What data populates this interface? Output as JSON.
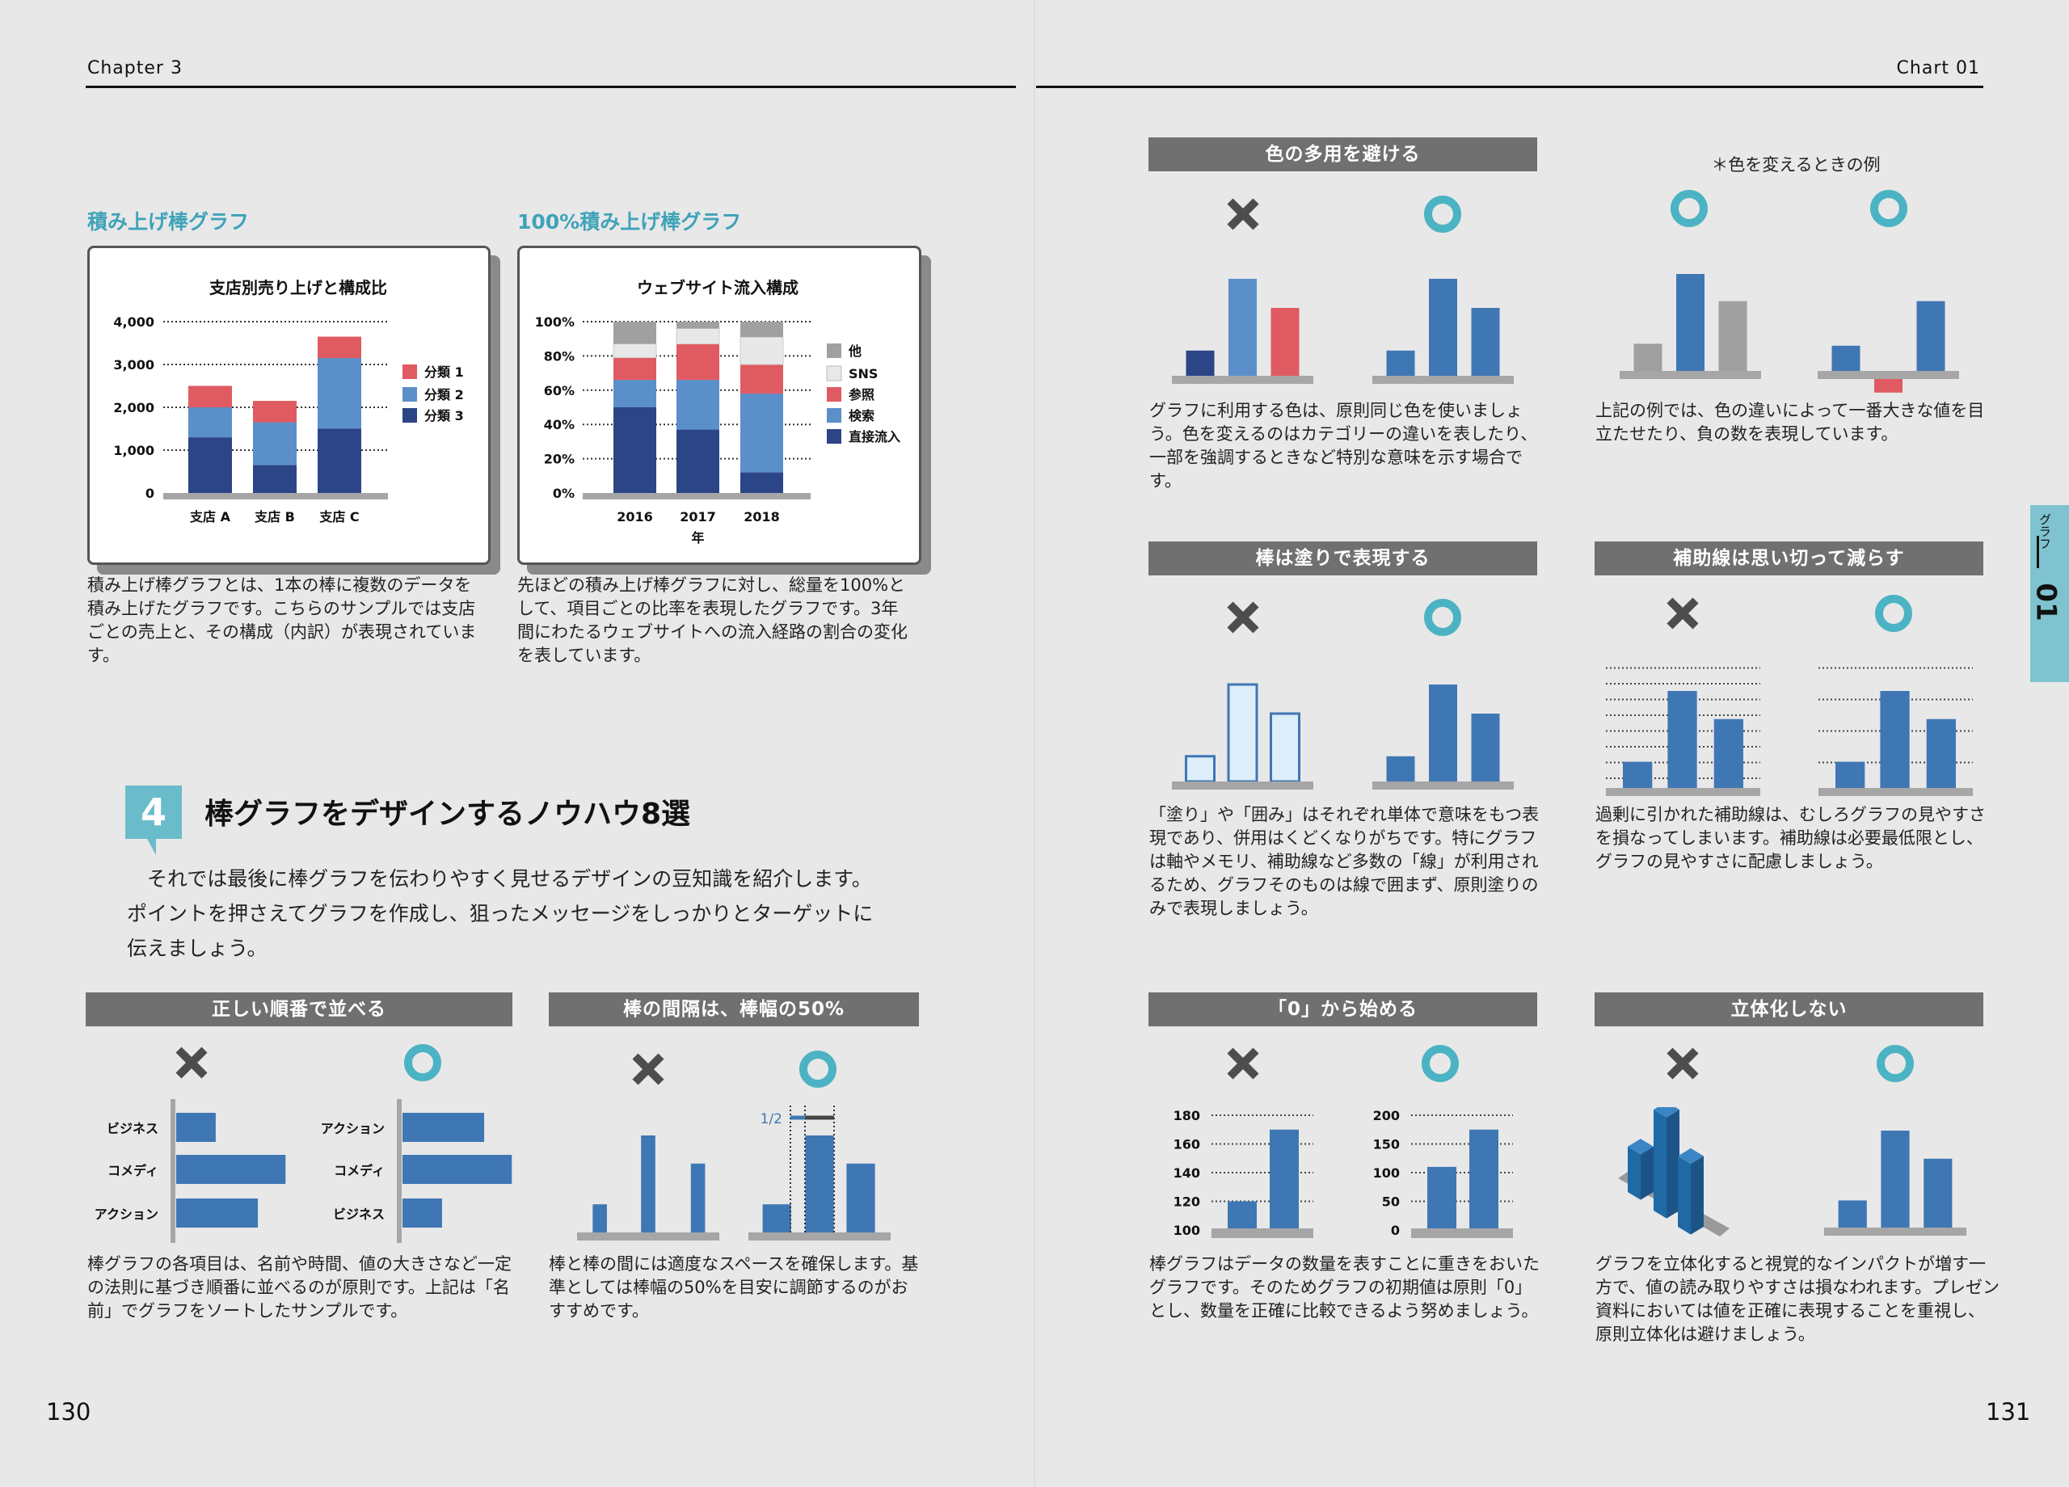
{
  "header": {
    "chapter": "Chapter 3",
    "chart_label": "Chart 01"
  },
  "page_numbers": {
    "left": "130",
    "right": "131"
  },
  "side_tab": {
    "label": "グラフ",
    "number": "01"
  },
  "colors": {
    "background": "#e8e8e8",
    "teal": "#4bb3c3",
    "heading_teal": "#3fa3b8",
    "header_bar": "#707070",
    "navy": "#2c4586",
    "mid_blue": "#5b8fc9",
    "blue": "#3f77b4",
    "red": "#e05a62",
    "gray": "#a0a0a0",
    "light_gray": "#e8e8e8",
    "outline_fill": "#ddeefa",
    "axis": "#a6a6a6",
    "x_mark": "#4d4d4d"
  },
  "stacked": {
    "heading": "積み上げ棒グラフ",
    "caption": "積み上げ棒グラフとは、1本の棒に複数のデータを積み上げたグラフです。こちらのサンプルでは支店ごとの売上と、その構成（内訳）が表現されています。"
  },
  "percent": {
    "heading": "100%積み上げ棒グラフ",
    "caption": "先ほどの積み上げ棒グラフに対し、総量を100%として、項目ごとの比率を表現したグラフです。3年間にわたるウェブサイトへの流入経路の割合の変化を表しています。"
  },
  "chart_data": [
    {
      "type": "bar",
      "stacked": true,
      "title": "支店別売り上げと構成比",
      "categories": [
        "支店 A",
        "支店 B",
        "支店 C"
      ],
      "yticks": [
        "0",
        "1,000",
        "2,000",
        "3,000",
        "4,000"
      ],
      "ylim": [
        0,
        4000
      ],
      "grid": true,
      "legend": "right",
      "series": [
        {
          "name": "分類 3",
          "color": "#2c4586",
          "values": [
            1300,
            650,
            1500
          ]
        },
        {
          "name": "分類 2",
          "color": "#5b8fc9",
          "values": [
            700,
            1000,
            1650
          ]
        },
        {
          "name": "分類 1",
          "color": "#e05a62",
          "values": [
            500,
            500,
            500
          ]
        }
      ],
      "legend_order": [
        "分類 1",
        "分類 2",
        "分類 3"
      ]
    },
    {
      "type": "bar",
      "stacked": true,
      "percent": true,
      "title": "ウェブサイト流入構成",
      "categories": [
        "2016",
        "2017",
        "2018"
      ],
      "xlabel": "年",
      "yticks": [
        "0%",
        "20%",
        "40%",
        "60%",
        "80%",
        "100%"
      ],
      "ylim": [
        0,
        100
      ],
      "grid": true,
      "legend": "right",
      "series": [
        {
          "name": "直接流入",
          "color": "#2c4586",
          "values": [
            50,
            37,
            12
          ]
        },
        {
          "name": "検索",
          "color": "#5b8fc9",
          "values": [
            16,
            29,
            46
          ]
        },
        {
          "name": "参照",
          "color": "#e05a62",
          "values": [
            13,
            21,
            17
          ]
        },
        {
          "name": "SNS",
          "color": "#e8e8e8",
          "values": [
            8,
            9,
            16
          ]
        },
        {
          "name": "他",
          "color": "#a0a0a0",
          "values": [
            13,
            4,
            9
          ]
        }
      ],
      "legend_order": [
        "他",
        "SNS",
        "参照",
        "検索",
        "直接流入"
      ]
    }
  ],
  "section": {
    "number": "4",
    "title": "棒グラフをデザインするノウハウ8選",
    "body": "　それでは最後に棒グラフを伝わりやすく見せるデザインの豆知識を紹介します。ポイントを押さえてグラフを作成し、狙ったメッセージをしっかりとターゲットに伝えましょう。"
  },
  "tips": {
    "order": {
      "title": "正しい順番で並べる",
      "caption": "棒グラフの各項目は、名前や時間、値の大きさなど一定の法則に基づき順番に並べるのが原則です。上記は「名前」でグラフをソートしたサンプルです。",
      "bad": [
        {
          "label": "ビジネス",
          "value": 30
        },
        {
          "label": "コメディ",
          "value": 83
        },
        {
          "label": "アクション",
          "value": 62
        }
      ],
      "good": [
        {
          "label": "アクション",
          "value": 62
        },
        {
          "label": "コメディ",
          "value": 83
        },
        {
          "label": "ビジネス",
          "value": 30
        }
      ]
    },
    "spacing": {
      "title": "棒の間隔は、棒幅の50%",
      "caption": "棒と棒の間には適度なスペースを確保します。基準としては棒幅の50%を目安に調節するのがおすすめです。",
      "annotation": "1/2",
      "bad": [
        29,
        100,
        71
      ],
      "good": [
        29,
        100,
        71
      ]
    },
    "color": {
      "title": "色の多用を避ける",
      "caption": "グラフに利用する色は、原則同じ色を使いましょう。色を変えるのはカテゴリーの違いを表したり、一部を強調するときなど特別な意味を示す場合です。",
      "bad": [
        {
          "value": 26,
          "color": "#2c4586"
        },
        {
          "value": 100,
          "color": "#5b8fc9"
        },
        {
          "value": 70,
          "color": "#e05a62"
        }
      ],
      "good": [
        {
          "value": 26,
          "color": "#3f77b4"
        },
        {
          "value": 100,
          "color": "#3f77b4"
        },
        {
          "value": 70,
          "color": "#3f77b4"
        }
      ]
    },
    "color_example": {
      "note": "＊色を変えるときの例",
      "caption": "上記の例では、色の違いによって一番大きな値を目立たせたり、負の数を表現しています。",
      "highlight": [
        {
          "value": 28,
          "color": "#a0a0a0"
        },
        {
          "value": 100,
          "color": "#3f77b4"
        },
        {
          "value": 72,
          "color": "#a0a0a0"
        }
      ],
      "negative": [
        {
          "value": 26,
          "color": "#3f77b4"
        },
        {
          "value": -14,
          "color": "#e05a62"
        },
        {
          "value": 72,
          "color": "#3f77b4"
        }
      ]
    },
    "fill": {
      "title": "棒は塗りで表現する",
      "caption": "「塗り」や「囲み」はそれぞれ単体で意味をもつ表現であり、併用はくどくなりがちです。特にグラフは軸やメモリ、補助線など多数の「線」が利用されるため、グラフそのものは線で囲まず、原則塗りのみで表現しましょう。",
      "bad": [
        {
          "value": 26,
          "color": "#ddeefa",
          "outline": "#3f77b4"
        },
        {
          "value": 100,
          "color": "#ddeefa",
          "outline": "#3f77b4"
        },
        {
          "value": 70,
          "color": "#ddeefa",
          "outline": "#3f77b4"
        }
      ],
      "good": [
        {
          "value": 26,
          "color": "#3f77b4"
        },
        {
          "value": 100,
          "color": "#3f77b4"
        },
        {
          "value": 70,
          "color": "#3f77b4"
        }
      ]
    },
    "grid": {
      "title": "補助線は思い切って減らす",
      "caption": "過剰に引かれた補助線は、むしろグラフの見やすさを損なってしまいます。補助線は必要最低限とし、グラフの見やすさに配慮しましょう。",
      "bad": {
        "values": [
          27,
          100,
          71
        ],
        "gridlines": 8
      },
      "good": {
        "values": [
          27,
          100,
          71
        ],
        "gridlines": 4
      }
    },
    "zero": {
      "title": "「0」から始める",
      "caption": "棒グラフはデータの数量を表すことに重きをおいたグラフです。そのためグラフの初期値は原則「0」とし、数量を正確に比較できるよう努めましょう。",
      "bad": {
        "yticks": [
          "100",
          "120",
          "140",
          "160",
          "180"
        ],
        "ylim": [
          100,
          180
        ],
        "values": [
          120,
          170
        ]
      },
      "good": {
        "yticks": [
          "0",
          "50",
          "100",
          "150",
          "200"
        ],
        "ylim": [
          0,
          200
        ],
        "values": [
          110,
          175
        ]
      }
    },
    "flat": {
      "title": "立体化しない",
      "caption": "グラフを立体化すると視覚的なインパクトが増す一方で、値の読み取りやすさは損なわれます。プレゼン資料においては値を正確に表現することを重視し、原則立体化は避けましょう。",
      "bad": [
        45,
        100,
        70
      ],
      "good": [
        28,
        100,
        71
      ]
    }
  }
}
